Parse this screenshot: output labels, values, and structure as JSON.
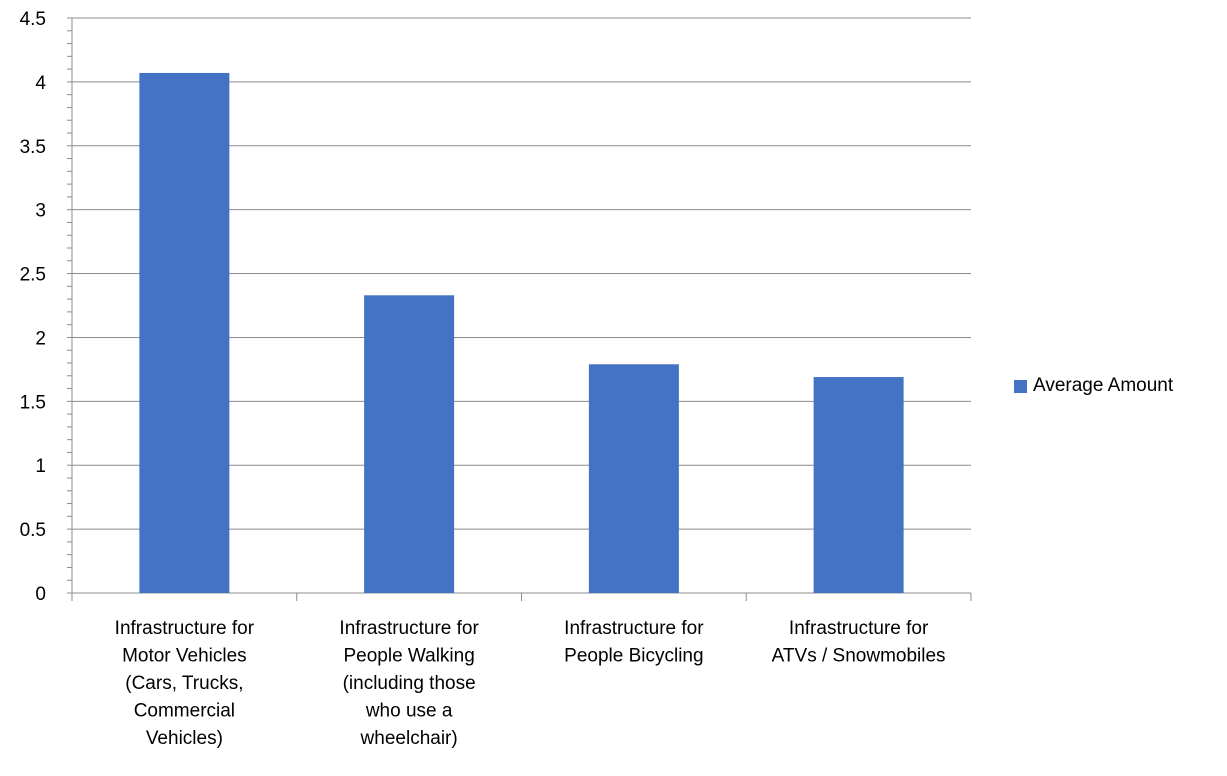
{
  "chart_data": {
    "type": "bar",
    "categories": [
      [
        "Infrastructure for",
        "Motor Vehicles",
        "(Cars, Trucks,",
        "Commercial",
        "Vehicles)"
      ],
      [
        "Infrastructure for",
        "People Walking",
        "(including those",
        "who use a",
        "wheelchair)"
      ],
      [
        "Infrastructure for",
        "People Bicycling"
      ],
      [
        "Infrastructure for",
        "ATVs / Snowmobiles"
      ]
    ],
    "series": [
      {
        "name": "Average Amount",
        "values": [
          4.07,
          2.33,
          1.79,
          1.69
        ],
        "color": "#4472C4"
      }
    ],
    "title": "",
    "xlabel": "",
    "ylabel": "",
    "ylim": [
      0,
      4.5
    ],
    "yticks": [
      "0",
      "0.5",
      "1",
      "1.5",
      "2",
      "2.5",
      "3",
      "3.5",
      "4",
      "4.5"
    ],
    "grid": true,
    "legend_position": "right"
  }
}
